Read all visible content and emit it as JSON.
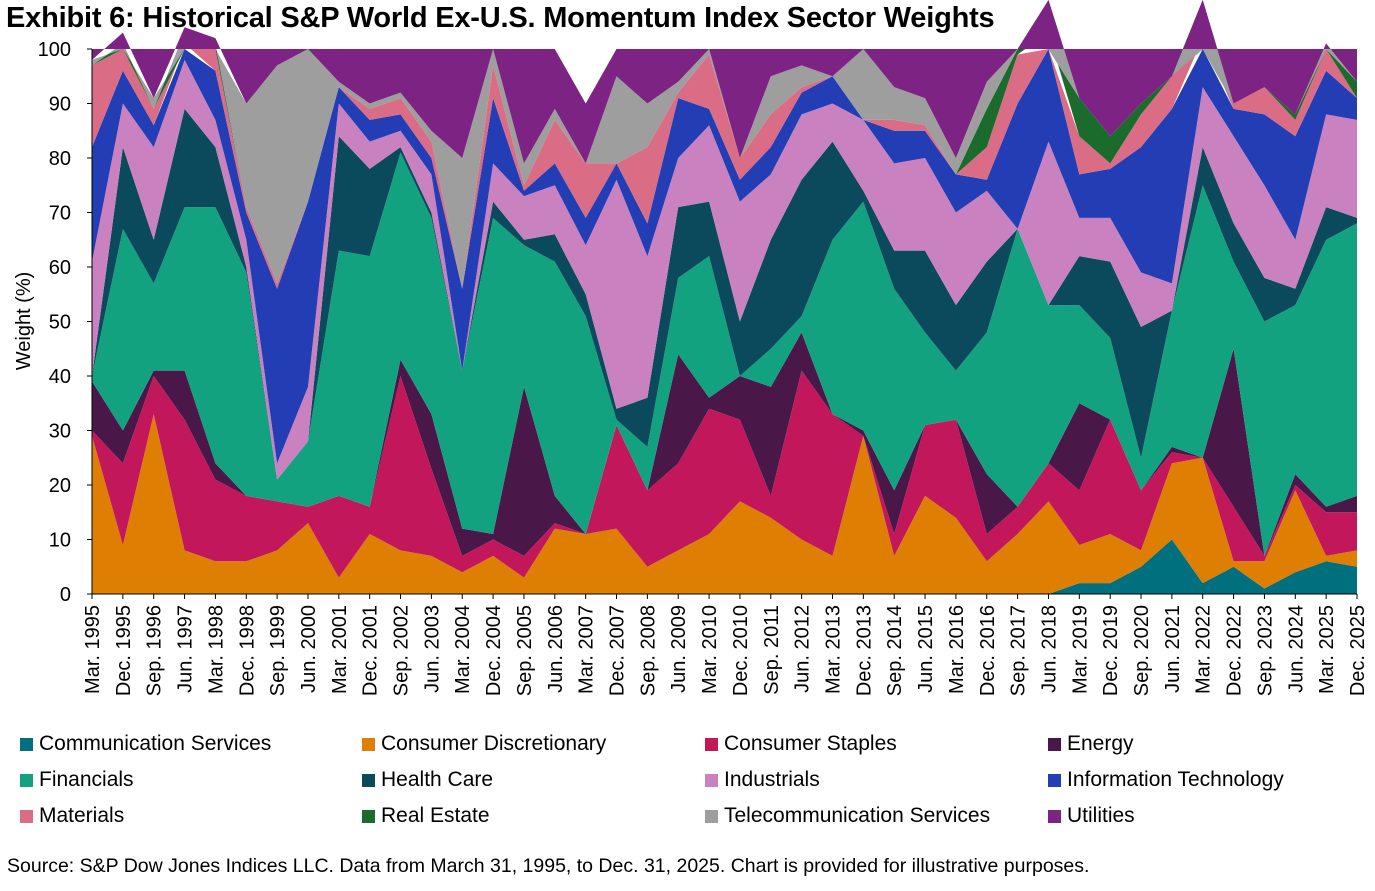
{
  "chart_data": {
    "type": "area",
    "title": "Exhibit 6: Historical S&P World Ex-U.S. Momentum Index Sector Weights",
    "ylabel": "Weight (%)",
    "xlabel": "",
    "ylim": [
      0,
      100
    ],
    "yticks": [
      "0",
      "10",
      "20",
      "30",
      "40",
      "50",
      "60",
      "70",
      "80",
      "90",
      "100"
    ],
    "xtick_labels": [
      "Mar. 1995",
      "Dec. 1995",
      "Sep. 1996",
      "Jun. 1997",
      "Mar. 1998",
      "Dec. 1998",
      "Sep. 1999",
      "Jun. 2000",
      "Mar. 2001",
      "Dec. 2001",
      "Sep. 2002",
      "Jun. 2003",
      "Mar. 2004",
      "Dec. 2004",
      "Sep. 2005",
      "Jun. 2006",
      "Mar. 2007",
      "Dec. 2007",
      "Sep. 2008",
      "Jun. 2009",
      "Mar. 2010",
      "Dec. 2010",
      "Sep. 2011",
      "Jun. 2012",
      "Mar. 2013",
      "Dec. 2013",
      "Sep. 2014",
      "Jun. 2015",
      "Mar. 2016",
      "Dec. 2016",
      "Sep. 2017",
      "Jun. 2018",
      "Mar. 2019",
      "Dec. 2019",
      "Sep. 2020",
      "Jun. 2021",
      "Mar. 2022",
      "Dec. 2022",
      "Sep. 2023",
      "Jun. 2024",
      "Mar. 2025",
      "Dec. 2025"
    ],
    "x": [
      "Mar. 1995",
      "Dec. 1995",
      "Sep. 1996",
      "Jun. 1997",
      "Mar. 1998",
      "Dec. 1998",
      "Sep. 1999",
      "Jun. 2000",
      "Mar. 2001",
      "Dec. 2001",
      "Sep. 2002",
      "Jun. 2003",
      "Mar. 2004",
      "Dec. 2004",
      "Sep. 2005",
      "Jun. 2006",
      "Mar. 2007",
      "Dec. 2007",
      "Sep. 2008",
      "Jun. 2009",
      "Mar. 2010",
      "Dec. 2010",
      "Sep. 2011",
      "Jun. 2012",
      "Mar. 2013",
      "Dec. 2013",
      "Sep. 2014",
      "Jun. 2015",
      "Mar. 2016",
      "Dec. 2016",
      "Sep. 2017",
      "Jun. 2018",
      "Mar. 2019",
      "Dec. 2019",
      "Sep. 2020",
      "Jun. 2021",
      "Mar. 2022",
      "Dec. 2022",
      "Sep. 2023",
      "Jun. 2024",
      "Mar. 2025",
      "Dec. 2025"
    ],
    "series": [
      {
        "name": "Communication Services",
        "color": "#006F7E",
        "values": [
          0,
          0,
          0,
          0,
          0,
          0,
          0,
          0,
          0,
          0,
          0,
          0,
          0,
          0,
          0,
          0,
          0,
          0,
          0,
          0,
          0,
          0,
          0,
          0,
          0,
          0,
          0,
          0,
          0,
          0,
          0,
          0,
          2,
          2,
          5,
          10,
          2,
          5,
          1,
          4,
          6,
          5
        ]
      },
      {
        "name": "Consumer Discretionary",
        "color": "#DE7F04",
        "values": [
          29,
          9,
          33,
          8,
          6,
          6,
          8,
          13,
          3,
          11,
          8,
          7,
          4,
          7,
          3,
          12,
          11,
          12,
          5,
          8,
          11,
          17,
          14,
          10,
          7,
          29,
          7,
          18,
          14,
          6,
          11,
          17,
          7,
          9,
          3,
          14,
          23,
          1,
          5,
          15,
          1,
          3
        ]
      },
      {
        "name": "Consumer Staples",
        "color": "#C2185B",
        "values": [
          1,
          15,
          7,
          24,
          15,
          12,
          9,
          3,
          15,
          5,
          32,
          16,
          3,
          3,
          4,
          1,
          0,
          19,
          14,
          16,
          23,
          15,
          4,
          31,
          26,
          0,
          4,
          13,
          18,
          5,
          5,
          7,
          10,
          21,
          11,
          2,
          0,
          10,
          1,
          1,
          8,
          7
        ]
      },
      {
        "name": "Energy",
        "color": "#4A1749",
        "values": [
          9,
          6,
          1,
          9,
          3,
          0,
          0,
          0,
          0,
          0,
          3,
          10,
          5,
          1,
          31,
          5,
          0,
          0,
          0,
          20,
          2,
          8,
          20,
          7,
          0,
          1,
          8,
          0,
          0,
          11,
          0,
          0,
          16,
          0,
          0,
          1,
          0,
          29,
          0,
          2,
          1,
          3
        ]
      },
      {
        "name": "Financials",
        "color": "#13A280",
        "values": [
          1,
          37,
          16,
          30,
          47,
          41,
          4,
          12,
          45,
          46,
          38,
          36,
          29,
          58,
          26,
          43,
          40,
          1,
          8,
          14,
          26,
          0,
          7,
          3,
          32,
          42,
          37,
          17,
          9,
          26,
          51,
          29,
          18,
          15,
          6,
          25,
          50,
          16,
          43,
          31,
          49,
          50
        ]
      },
      {
        "name": "Health Care",
        "color": "#0B4A5C",
        "values": [
          0,
          15,
          8,
          18,
          11,
          1,
          0,
          0,
          21,
          16,
          1,
          1,
          0,
          3,
          1,
          5,
          4,
          2,
          9,
          13,
          10,
          10,
          20,
          25,
          18,
          2,
          7,
          15,
          12,
          13,
          0,
          0,
          9,
          14,
          24,
          0,
          7,
          7,
          8,
          3,
          6,
          1
        ]
      },
      {
        "name": "Industrials",
        "color": "#C982BF",
        "values": [
          21,
          8,
          17,
          9,
          5,
          5,
          3,
          10,
          6,
          5,
          3,
          7,
          0,
          7,
          8,
          9,
          9,
          42,
          26,
          9,
          14,
          22,
          12,
          12,
          7,
          13,
          16,
          17,
          17,
          13,
          0,
          30,
          7,
          8,
          10,
          5,
          11,
          16,
          17,
          9,
          17,
          18
        ]
      },
      {
        "name": "Information Technology",
        "color": "#233DB5",
        "values": [
          21,
          6,
          4,
          3,
          9,
          5,
          32,
          34,
          3,
          4,
          3,
          3,
          15,
          12,
          1,
          4,
          5,
          3,
          6,
          11,
          3,
          4,
          5,
          4,
          5,
          0,
          6,
          5,
          7,
          2,
          23,
          17,
          8,
          9,
          23,
          32,
          9,
          5,
          13,
          19,
          8,
          4
        ]
      },
      {
        "name": "Materials",
        "color": "#DA6C85",
        "values": [
          15,
          5,
          3,
          2,
          5,
          1,
          1,
          0,
          0,
          2,
          3,
          3,
          0,
          6,
          1,
          8,
          10,
          0,
          14,
          1,
          10,
          4,
          6,
          1,
          0,
          0,
          2,
          1,
          0,
          6,
          9,
          3,
          7,
          1,
          6,
          6,
          7,
          1,
          5,
          3,
          4,
          0
        ]
      },
      {
        "name": "Real Estate",
        "color": "#1B6B2C",
        "values": [
          0,
          0,
          0,
          0,
          0,
          0,
          0,
          0,
          0,
          0,
          0,
          0,
          0,
          0,
          0,
          0,
          0,
          0,
          0,
          0,
          0,
          0,
          0,
          0,
          0,
          0,
          0,
          0,
          0,
          7,
          1,
          6,
          7,
          5,
          2,
          0,
          0,
          0,
          0,
          1,
          1,
          3
        ]
      },
      {
        "name": "Telecommunication Services",
        "color": "#9E9E9E",
        "values": [
          1,
          2,
          2,
          1,
          1,
          19,
          40,
          28,
          1,
          1,
          1,
          2,
          24,
          3,
          4,
          2,
          0,
          16,
          8,
          2,
          1,
          0,
          7,
          4,
          0,
          13,
          6,
          5,
          3,
          5,
          0,
          0,
          0,
          0,
          0,
          0,
          0,
          0,
          0,
          0,
          0,
          0
        ]
      },
      {
        "name": "Utilities",
        "color": "#7C2383",
        "values": [
          2,
          3,
          9,
          5,
          4,
          10,
          3,
          0,
          6,
          10,
          8,
          15,
          20,
          0,
          21,
          11,
          11,
          5,
          10,
          6,
          0,
          20,
          5,
          3,
          5,
          0,
          7,
          9,
          20,
          6,
          0,
          0,
          9,
          16,
          10,
          5,
          0,
          10,
          7,
          12,
          1,
          6
        ]
      }
    ],
    "source": "Source: S&P Dow Jones Indices LLC. Data from March 31, 1995, to Dec. 31, 2025. Chart is provided for illustrative purposes."
  }
}
